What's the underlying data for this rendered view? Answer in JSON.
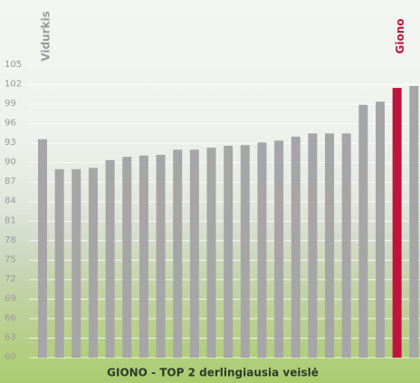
{
  "chart_data": {
    "type": "bar",
    "title": "GIONO - TOP 2 derlingiausia veislė",
    "categories": [
      "Vidurkis",
      null,
      null,
      null,
      null,
      null,
      null,
      null,
      null,
      null,
      null,
      null,
      null,
      null,
      null,
      null,
      null,
      null,
      null,
      null,
      null,
      "Giono",
      null
    ],
    "values": [
      93.6,
      89.0,
      89.0,
      89.2,
      90.4,
      90.9,
      91.1,
      91.2,
      92.0,
      92.0,
      92.3,
      92.6,
      92.7,
      93.1,
      93.4,
      94.0,
      94.5,
      94.5,
      94.5,
      98.9,
      99.4,
      101.5,
      101.8
    ],
    "colors": [
      "#a6a6a6",
      "#a6a6a6",
      "#a6a6a6",
      "#a6a6a6",
      "#a6a6a6",
      "#a6a6a6",
      "#a6a6a6",
      "#a6a6a6",
      "#a6a6a6",
      "#a6a6a6",
      "#a6a6a6",
      "#a6a6a6",
      "#a6a6a6",
      "#a6a6a6",
      "#a6a6a6",
      "#a6a6a6",
      "#a6a6a6",
      "#a6a6a6",
      "#a6a6a6",
      "#a6a6a6",
      "#a6a6a6",
      "#c0143c",
      "#a6a6a6"
    ],
    "label_colors": [
      "#9a9a9a",
      null,
      null,
      null,
      null,
      null,
      null,
      null,
      null,
      null,
      null,
      null,
      null,
      null,
      null,
      null,
      null,
      null,
      null,
      null,
      null,
      "#c0143c",
      null
    ],
    "ylim": [
      60,
      105
    ],
    "yticks": [
      60,
      63,
      66,
      69,
      72,
      75,
      78,
      81,
      84,
      87,
      90,
      93,
      96,
      99,
      102,
      105
    ],
    "grid": true
  }
}
